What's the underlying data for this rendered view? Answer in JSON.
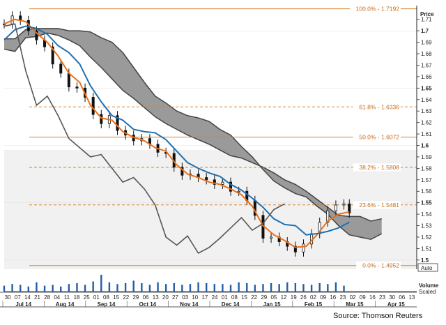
{
  "chart_data": {
    "type": "line",
    "title": "",
    "ylabel": "Price",
    "volume_label": "Volume",
    "volume_scale": "Scaled",
    "auto_label": "Auto",
    "source": "Source: Thomson Reuters",
    "ylim": [
      1.492,
      1.722
    ],
    "y_ticks": [
      1.5,
      1.51,
      1.52,
      1.53,
      1.54,
      1.55,
      1.56,
      1.57,
      1.58,
      1.59,
      1.6,
      1.61,
      1.62,
      1.63,
      1.64,
      1.65,
      1.66,
      1.67,
      1.68,
      1.69,
      1.7,
      1.71
    ],
    "y_major": [
      1.5,
      1.55,
      1.6,
      1.65,
      1.7
    ],
    "x_day_labels": [
      "30",
      "07",
      "14",
      "21",
      "28",
      "04",
      "11",
      "18",
      "25",
      "01",
      "08",
      "15",
      "22",
      "29",
      "06",
      "13",
      "20",
      "27",
      "03",
      "10",
      "17",
      "24",
      "01",
      "08",
      "15",
      "22",
      "29",
      "05",
      "12",
      "19",
      "26",
      "02",
      "09",
      "16",
      "23",
      "02",
      "09",
      "16",
      "23",
      "30",
      "06",
      "13"
    ],
    "x_month_labels": [
      "Jul 14",
      "Aug 14",
      "Sep 14",
      "Oct 14",
      "Nov 14",
      "Dec 14",
      "Jan 15",
      "Feb 15",
      "Mar 15",
      "Apr 15"
    ],
    "fib_levels": [
      {
        "label": "100.0% - 1.7192",
        "value": 1.7192,
        "style": "solid"
      },
      {
        "label": "61.8% - 1.6336",
        "value": 1.6336,
        "style": "dashed"
      },
      {
        "label": "50.0% - 1.6072",
        "value": 1.6072,
        "style": "solid"
      },
      {
        "label": "38.2% - 1.5808",
        "value": 1.5808,
        "style": "dashed"
      },
      {
        "label": "23.6% - 1.5481",
        "value": 1.5481,
        "style": "dashed"
      },
      {
        "label": "0.0% - 1.4952",
        "value": 1.4952,
        "style": "solid"
      }
    ],
    "series": [
      {
        "name": "",
        "type": "candlestick-close",
        "color": "#111111",
        "x": [
          0,
          3,
          6,
          9,
          12,
          15,
          18,
          21,
          24,
          27,
          30,
          33,
          36,
          39,
          42,
          45,
          48,
          51,
          54,
          57,
          60,
          63,
          66,
          69,
          72,
          75,
          78,
          81,
          84,
          87,
          90,
          93,
          96,
          99,
          102,
          105,
          108,
          111,
          114,
          117,
          120,
          123,
          126,
          128
        ],
        "values": [
          1.706,
          1.713,
          1.709,
          1.7,
          1.692,
          1.686,
          1.671,
          1.663,
          1.651,
          1.65,
          1.642,
          1.627,
          1.619,
          1.626,
          1.613,
          1.609,
          1.604,
          1.606,
          1.601,
          1.594,
          1.593,
          1.581,
          1.574,
          1.575,
          1.572,
          1.57,
          1.566,
          1.568,
          1.56,
          1.56,
          1.552,
          1.539,
          1.519,
          1.52,
          1.516,
          1.512,
          1.507,
          1.514,
          1.523,
          1.533,
          1.543,
          1.548,
          1.549,
          1.541
        ]
      },
      {
        "name": "",
        "type": "line",
        "color": "#e8711a",
        "x": [
          0,
          4,
          8,
          12,
          16,
          20,
          24,
          28,
          32,
          36,
          40,
          44,
          48,
          52,
          56,
          60,
          64,
          68,
          72,
          76,
          80,
          84,
          88,
          92,
          96,
          100,
          104,
          108,
          112,
          116,
          120,
          124,
          128
        ],
        "values": [
          1.706,
          1.71,
          1.708,
          1.698,
          1.69,
          1.678,
          1.663,
          1.655,
          1.635,
          1.624,
          1.622,
          1.612,
          1.607,
          1.604,
          1.598,
          1.595,
          1.583,
          1.575,
          1.572,
          1.568,
          1.566,
          1.562,
          1.557,
          1.547,
          1.53,
          1.522,
          1.517,
          1.511,
          1.512,
          1.522,
          1.534,
          1.54,
          1.542
        ]
      },
      {
        "name": "",
        "type": "line",
        "color": "#1f70b0",
        "x": [
          0,
          4,
          8,
          12,
          16,
          20,
          24,
          28,
          32,
          36,
          40,
          44,
          48,
          52,
          56,
          60,
          64,
          68,
          72,
          76,
          80,
          84,
          88,
          92,
          96,
          100,
          104,
          108,
          112,
          116,
          120,
          124,
          128
        ],
        "values": [
          1.692,
          1.701,
          1.704,
          1.702,
          1.697,
          1.687,
          1.681,
          1.671,
          1.652,
          1.638,
          1.626,
          1.622,
          1.614,
          1.612,
          1.611,
          1.605,
          1.595,
          1.585,
          1.58,
          1.576,
          1.573,
          1.566,
          1.561,
          1.554,
          1.546,
          1.536,
          1.531,
          1.53,
          1.522,
          1.523,
          1.525,
          1.528,
          1.533
        ]
      },
      {
        "name": "",
        "type": "line",
        "color": "#555555",
        "x": [
          0,
          4,
          8,
          12,
          16,
          20,
          24,
          28,
          32,
          36,
          40,
          44,
          48,
          52,
          56,
          60,
          64,
          68,
          72,
          76,
          80,
          84,
          88,
          92,
          96,
          100,
          104
        ],
        "values": [
          1.704,
          1.706,
          1.665,
          1.635,
          1.643,
          1.626,
          1.606,
          1.598,
          1.59,
          1.592,
          1.58,
          1.568,
          1.572,
          1.562,
          1.548,
          1.52,
          1.513,
          1.521,
          1.506,
          1.511,
          1.519,
          1.528,
          1.537,
          1.526,
          1.532,
          1.544,
          1.549
        ]
      }
    ],
    "cloud": {
      "x": [
        0,
        4,
        8,
        12,
        16,
        20,
        24,
        28,
        32,
        36,
        40,
        44,
        48,
        52,
        56,
        60,
        64,
        68,
        72,
        76,
        80,
        84,
        88,
        92,
        96,
        100,
        104,
        108,
        112,
        116,
        120,
        124,
        128,
        132,
        136,
        140
      ],
      "span_a": [
        1.684,
        1.682,
        1.694,
        1.695,
        1.698,
        1.696,
        1.692,
        1.687,
        1.677,
        1.668,
        1.658,
        1.648,
        1.641,
        1.633,
        1.625,
        1.619,
        1.614,
        1.609,
        1.605,
        1.601,
        1.596,
        1.591,
        1.589,
        1.585,
        1.581,
        1.576,
        1.57,
        1.566,
        1.56,
        1.553,
        1.546,
        1.539,
        1.538,
        1.538,
        1.534,
        1.536
      ],
      "span_b": [
        1.693,
        1.693,
        1.701,
        1.702,
        1.702,
        1.702,
        1.7,
        1.7,
        1.699,
        1.694,
        1.69,
        1.681,
        1.668,
        1.655,
        1.643,
        1.637,
        1.63,
        1.626,
        1.624,
        1.621,
        1.614,
        1.609,
        1.599,
        1.59,
        1.579,
        1.569,
        1.563,
        1.558,
        1.555,
        1.547,
        1.54,
        1.53,
        1.522,
        1.52,
        1.518,
        1.523
      ],
      "color": "#9a9a9a"
    },
    "volume": {
      "x": [
        0,
        3,
        6,
        9,
        12,
        15,
        18,
        21,
        24,
        27,
        30,
        33,
        36,
        39,
        42,
        45,
        48,
        51,
        54,
        57,
        60,
        63,
        66,
        69,
        72,
        75,
        78,
        81,
        84,
        87,
        90,
        93,
        96,
        99,
        102,
        105,
        108,
        111,
        114,
        117,
        120,
        123,
        126
      ],
      "values": [
        0.35,
        0.45,
        0.4,
        0.3,
        0.55,
        0.35,
        0.4,
        0.3,
        0.45,
        0.5,
        0.4,
        0.6,
        1.0,
        0.55,
        0.45,
        0.5,
        0.65,
        0.5,
        0.4,
        0.55,
        0.45,
        0.5,
        0.4,
        0.45,
        0.55,
        0.5,
        0.45,
        0.45,
        0.4,
        0.55,
        0.5,
        0.4,
        0.45,
        0.5,
        0.45,
        0.55,
        0.5,
        0.45,
        0.4,
        0.5,
        0.45,
        0.55,
        0.35
      ],
      "color": "#1f5fa8"
    },
    "x_range": [
      0,
      153
    ]
  }
}
